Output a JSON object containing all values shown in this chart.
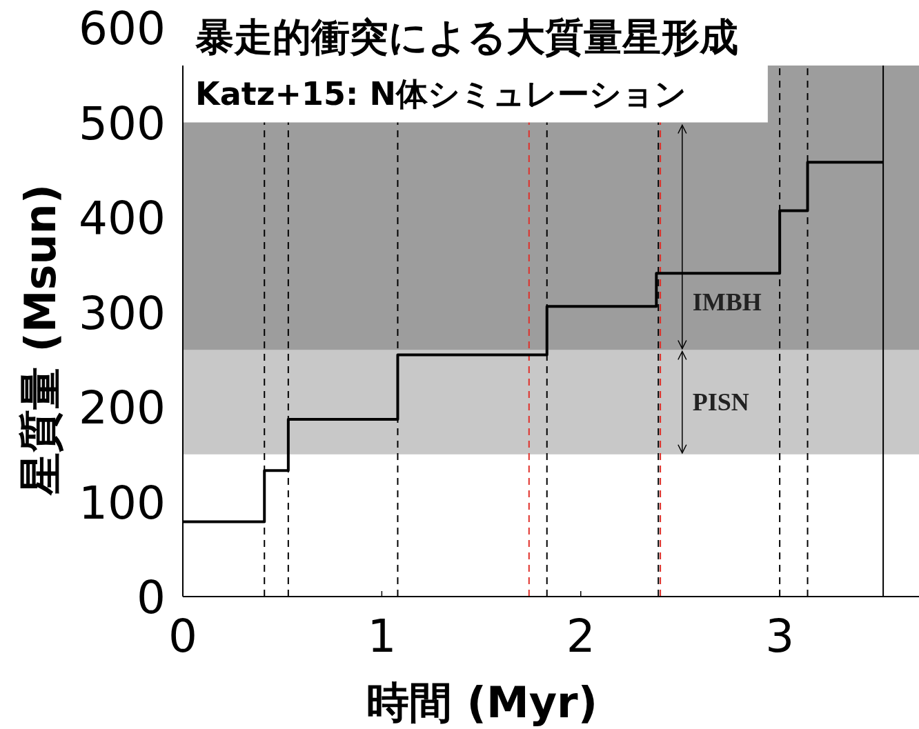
{
  "chart_data": {
    "type": "step",
    "title": "暴走的衝突による大質量星形成",
    "subtitle": "Katz+15: N体シミュレーション",
    "xlabel": "時間 (Myr)",
    "ylabel": "星質量 (Msun)",
    "x": [
      0,
      0.41,
      0.53,
      1.08,
      1.83,
      2.38,
      3.0,
      3.14,
      3.52
    ],
    "values": [
      79,
      133,
      187,
      255,
      306,
      341,
      407,
      458,
      458
    ],
    "color": "#000000",
    "xlim": [
      0,
      3.7
    ],
    "xticks": [
      0,
      1,
      2,
      3
    ],
    "ylim": [
      0,
      600
    ],
    "yticks": [
      0,
      100,
      200,
      300,
      400,
      500,
      600
    ],
    "bands": [
      {
        "axis": "y",
        "from": 150,
        "to": 260,
        "label": "PISN",
        "color": "#c8c8c8"
      },
      {
        "axis": "y",
        "from": 260,
        "to": 560,
        "label": "IMBH",
        "color": "#9d9d9d"
      }
    ],
    "ref_lines": [
      {
        "axis": "x",
        "value": 0.41,
        "color": "#000000",
        "line_style": "dashed"
      },
      {
        "axis": "x",
        "value": 0.53,
        "color": "#000000",
        "line_style": "dashed"
      },
      {
        "axis": "x",
        "value": 1.08,
        "color": "#000000",
        "line_style": "dashed"
      },
      {
        "axis": "x",
        "value": 1.74,
        "color": "#e0302a",
        "line_style": "dashed"
      },
      {
        "axis": "x",
        "value": 1.83,
        "color": "#000000",
        "line_style": "dashed"
      },
      {
        "axis": "x",
        "value": 2.39,
        "color": "#000000",
        "line_style": "dashed"
      },
      {
        "axis": "x",
        "value": 2.4,
        "color": "#e0302a",
        "line_style": "dashed"
      },
      {
        "axis": "x",
        "value": 3.0,
        "color": "#000000",
        "line_style": "dashed"
      },
      {
        "axis": "x",
        "value": 3.14,
        "color": "#000000",
        "line_style": "dashed"
      },
      {
        "axis": "x",
        "value": 3.52,
        "color": "#000000",
        "line_style": "solid"
      }
    ]
  }
}
